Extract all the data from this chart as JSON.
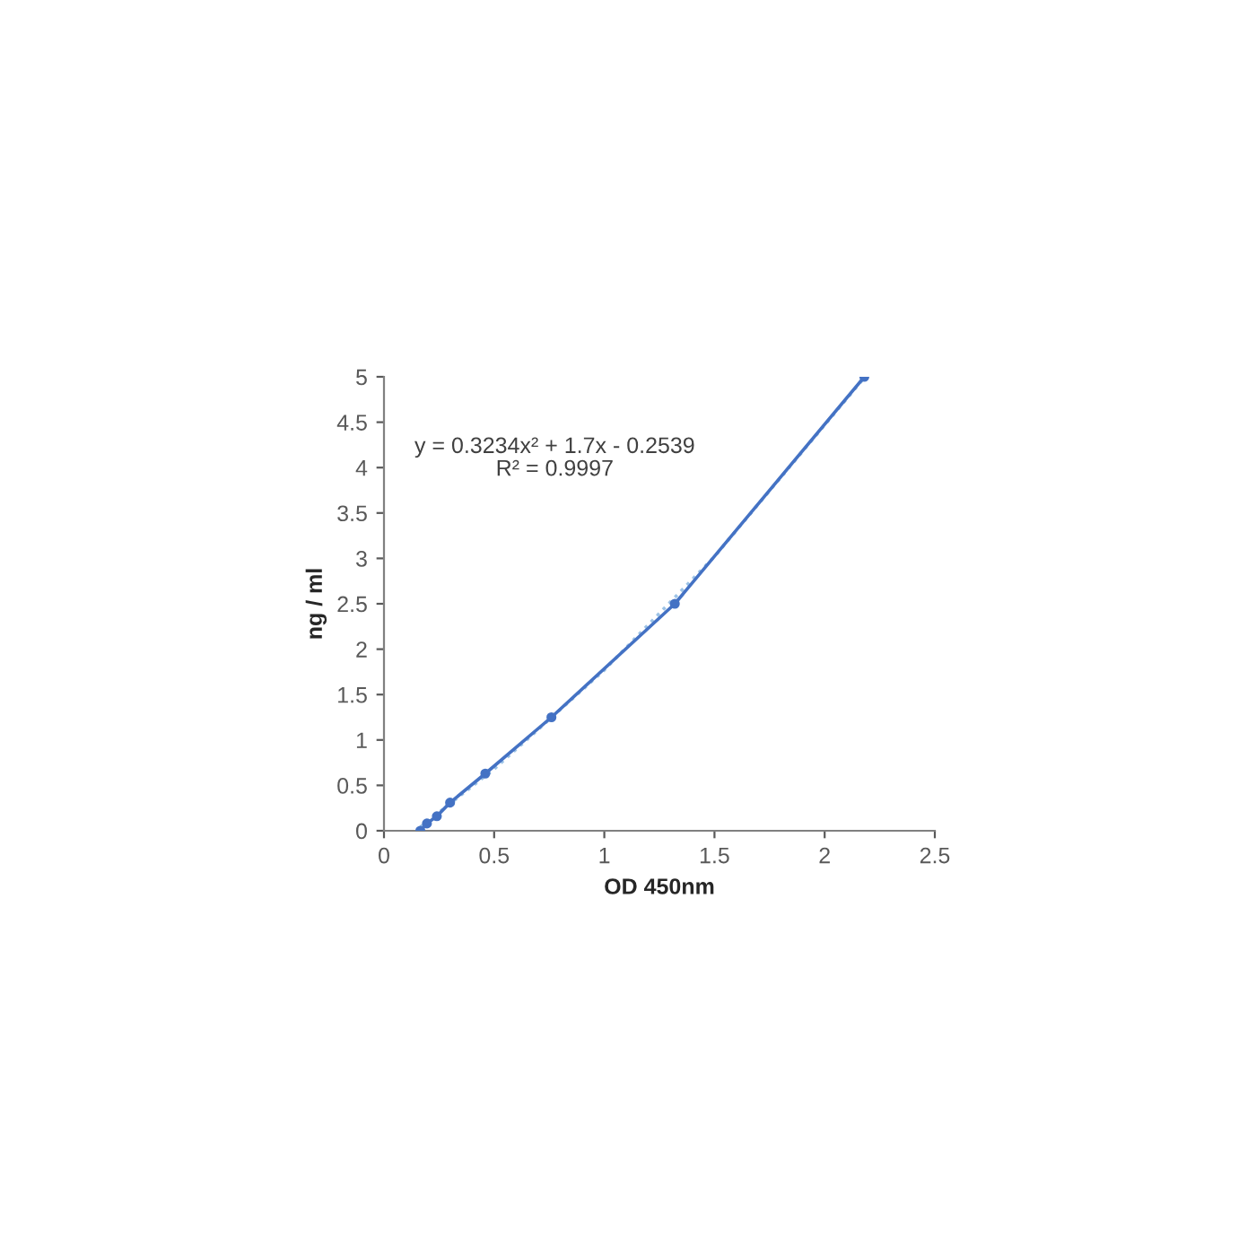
{
  "chart_data": {
    "type": "line",
    "xlabel": "OD 450nm",
    "ylabel": "ng / ml",
    "annotations": [
      "y = 0.3234x² + 1.7x - 0.2539",
      "R² = 0.9997"
    ],
    "series": [
      {
        "color": "#4472c4",
        "marker": "circle",
        "line_style": "solid",
        "x": [
          0.165,
          0.195,
          0.24,
          0.3,
          0.46,
          0.76,
          1.32,
          2.18
        ],
        "values": [
          0,
          0.08,
          0.16,
          0.31,
          0.63,
          1.25,
          2.5,
          5
        ]
      },
      {
        "color": "#9dc3e6",
        "marker": "none",
        "line_style": "dotted",
        "x": [
          0.165,
          0.5,
          1.0,
          1.5,
          2.18
        ],
        "values": [
          0.04,
          0.68,
          1.77,
          3.02,
          4.99
        ]
      }
    ],
    "xlim": [
      0,
      2.5
    ],
    "xticks": [
      0,
      0.5,
      1,
      1.5,
      2,
      2.5
    ],
    "ylim": [
      0,
      5
    ],
    "yticks": [
      0,
      0.5,
      1,
      1.5,
      2,
      2.5,
      3,
      3.5,
      4,
      4.5,
      5
    ],
    "grid": false,
    "legend": false
  }
}
